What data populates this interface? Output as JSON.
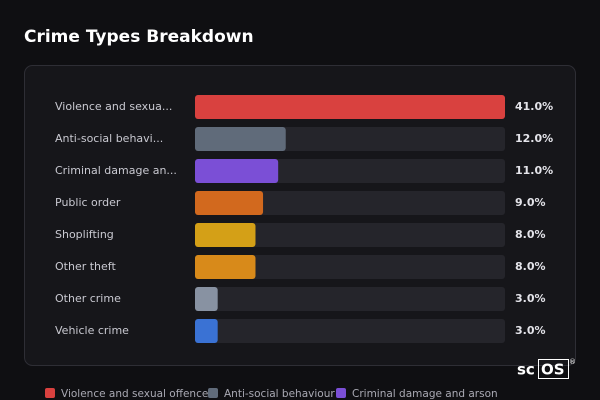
{
  "chart_data": {
    "type": "bar",
    "orientation": "horizontal",
    "title": "Crime Types Breakdown",
    "categories": [
      "Violence and sexua...",
      "Anti-social behavi...",
      "Criminal damage an...",
      "Public order",
      "Shoplifting",
      "Other theft",
      "Other crime",
      "Vehicle crime"
    ],
    "values": [
      41,
      12,
      11,
      9,
      8,
      8,
      3,
      3
    ],
    "value_labels": [
      "41.0%",
      "12.0%",
      "11.0%",
      "9.0%",
      "8.0%",
      "8.0%",
      "3.0%",
      "3.0%"
    ],
    "colors": [
      "#d9413f",
      "#606b7a",
      "#7b4fd6",
      "#d2691e",
      "#d4a017",
      "#d88a1a",
      "#8892a2",
      "#3a72d4"
    ],
    "legend": [
      {
        "name": "Violence and sexual offences",
        "color": "#d9413f"
      },
      {
        "name": "Anti-social behaviour",
        "color": "#606b7a"
      },
      {
        "name": "Criminal damage and arson",
        "color": "#7b4fd6"
      }
    ]
  },
  "brand": {
    "prefix": "sc",
    "boxed": "OS",
    "mark": "®"
  }
}
